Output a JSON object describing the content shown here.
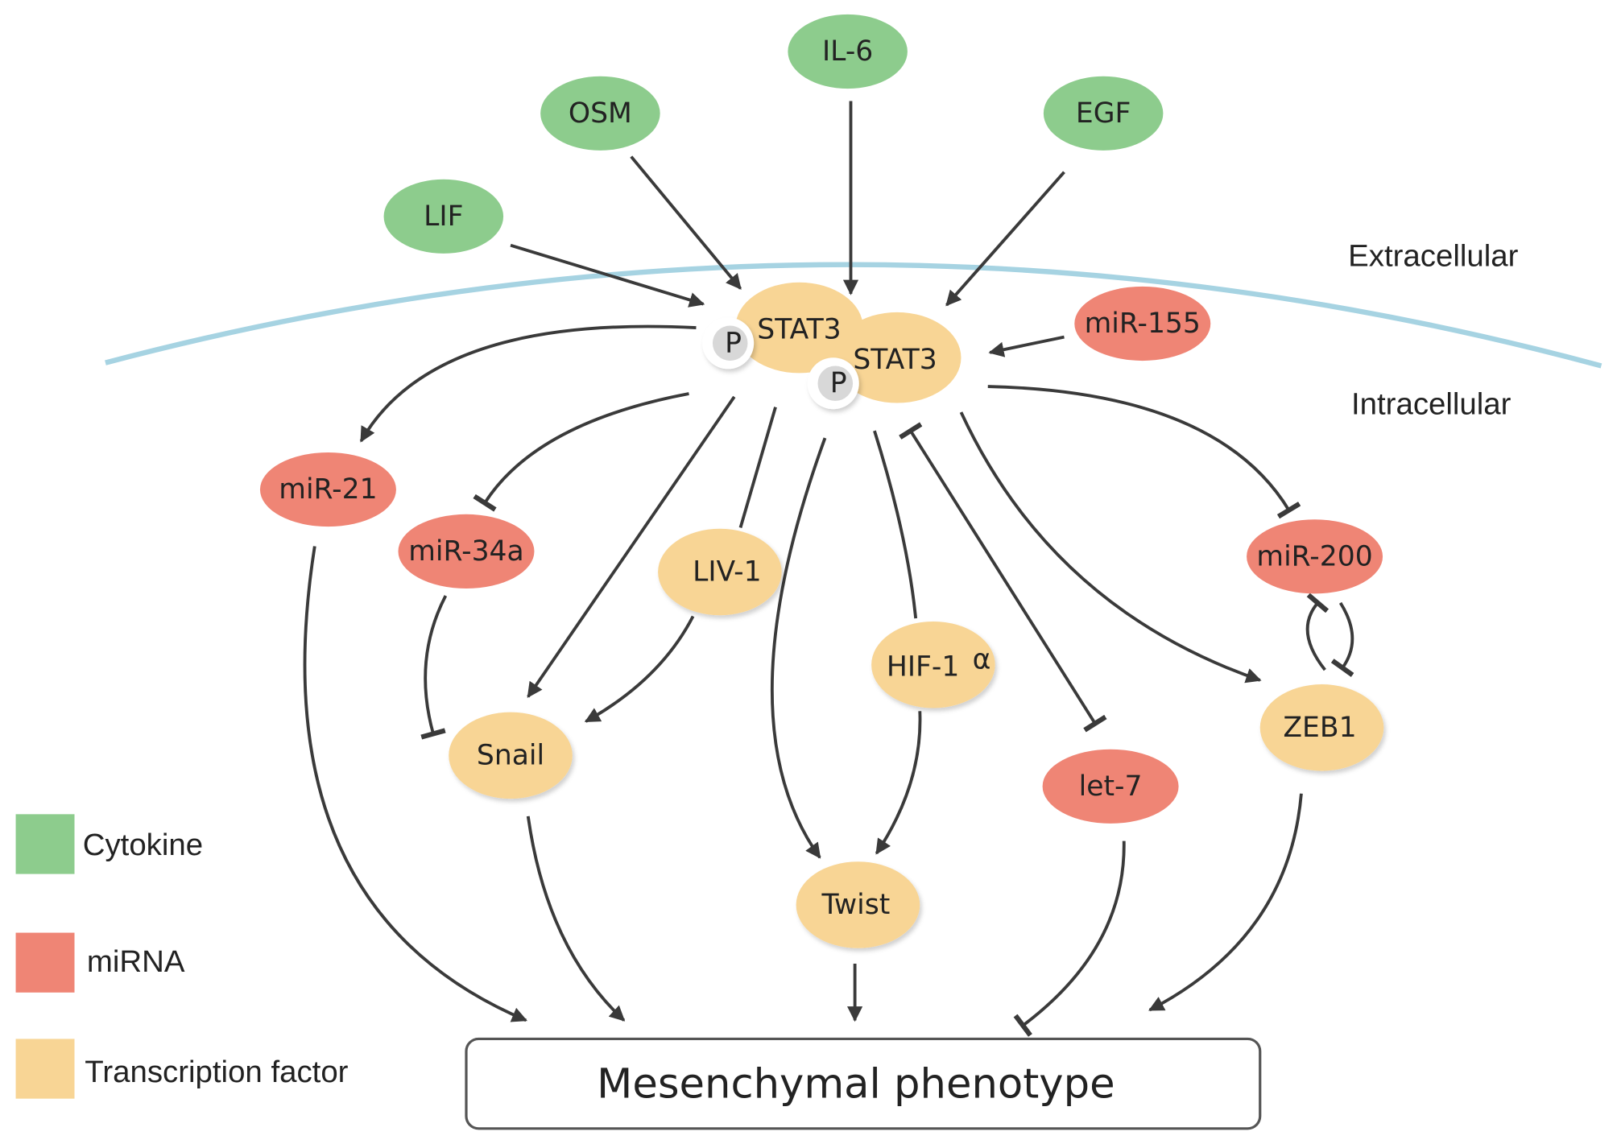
{
  "colors": {
    "cytokine": "#8dcc8d",
    "mirna": "#ef8575",
    "transcription_factor": "#f8d595",
    "membrane": "#a6d3e2"
  },
  "regions": {
    "extracellular": "Extracellular",
    "intracellular": "Intracellular"
  },
  "nodes": {
    "il6": {
      "label": "IL-6",
      "category": "cytokine"
    },
    "osm": {
      "label": "OSM",
      "category": "cytokine"
    },
    "egf": {
      "label": "EGF",
      "category": "cytokine"
    },
    "lif": {
      "label": "LIF",
      "category": "cytokine"
    },
    "stat3a": {
      "label": "STAT3",
      "category": "transcription_factor"
    },
    "stat3b": {
      "label": "STAT3",
      "category": "transcription_factor"
    },
    "p1": {
      "label": "P"
    },
    "p2": {
      "label": "P"
    },
    "mir155": {
      "label": "miR-155",
      "category": "mirna"
    },
    "mir21": {
      "label": "miR-21",
      "category": "mirna"
    },
    "mir34a": {
      "label": "miR-34a",
      "category": "mirna"
    },
    "liv1": {
      "label": "LIV-1",
      "category": "transcription_factor"
    },
    "hif1a": {
      "label": "HIF-1",
      "suffix": "α",
      "category": "transcription_factor"
    },
    "mir200": {
      "label": "miR-200",
      "category": "mirna"
    },
    "snail": {
      "label": "Snail",
      "category": "transcription_factor"
    },
    "let7": {
      "label": "let-7",
      "category": "mirna"
    },
    "zeb1": {
      "label": "ZEB1",
      "category": "transcription_factor"
    },
    "twist": {
      "label": "Twist",
      "category": "transcription_factor"
    }
  },
  "outcome": {
    "label": "Mesenchymal phenotype"
  },
  "edges": [
    {
      "from": "OSM",
      "to": "STAT3",
      "type": "activation"
    },
    {
      "from": "IL-6",
      "to": "STAT3",
      "type": "activation"
    },
    {
      "from": "EGF",
      "to": "STAT3",
      "type": "activation"
    },
    {
      "from": "LIF",
      "to": "STAT3",
      "type": "activation"
    },
    {
      "from": "miR-155",
      "to": "STAT3",
      "type": "activation"
    },
    {
      "from": "STAT3",
      "to": "miR-21",
      "type": "activation"
    },
    {
      "from": "STAT3",
      "to": "miR-34a",
      "type": "inhibition"
    },
    {
      "from": "STAT3",
      "to": "Snail",
      "type": "activation"
    },
    {
      "from": "STAT3",
      "to": "LIV-1",
      "type": "link"
    },
    {
      "from": "LIV-1",
      "to": "Snail",
      "type": "activation"
    },
    {
      "from": "STAT3",
      "to": "Twist",
      "type": "activation"
    },
    {
      "from": "STAT3",
      "to": "HIF-1α",
      "type": "link"
    },
    {
      "from": "HIF-1α",
      "to": "Twist",
      "type": "activation"
    },
    {
      "from": "STAT3",
      "to": "let-7",
      "type": "mutual-inhibition"
    },
    {
      "from": "STAT3",
      "to": "ZEB1",
      "type": "activation"
    },
    {
      "from": "STAT3",
      "to": "miR-200",
      "type": "inhibition"
    },
    {
      "from": "ZEB1",
      "to": "miR-200",
      "type": "inhibition"
    },
    {
      "from": "miR-200",
      "to": "ZEB1",
      "type": "inhibition"
    },
    {
      "from": "miR-34a",
      "to": "Snail",
      "type": "inhibition"
    },
    {
      "from": "miR-21",
      "to": "Mesenchymal phenotype",
      "type": "activation"
    },
    {
      "from": "Snail",
      "to": "Mesenchymal phenotype",
      "type": "activation"
    },
    {
      "from": "Twist",
      "to": "Mesenchymal phenotype",
      "type": "activation"
    },
    {
      "from": "let-7",
      "to": "Mesenchymal phenotype",
      "type": "inhibition"
    },
    {
      "from": "ZEB1",
      "to": "Mesenchymal phenotype",
      "type": "activation"
    }
  ],
  "legend": [
    {
      "label": "Cytokine",
      "color": "#8dcc8d"
    },
    {
      "label": "miRNA",
      "color": "#ef8575"
    },
    {
      "label": "Transcription factor",
      "color": "#f8d595"
    }
  ]
}
